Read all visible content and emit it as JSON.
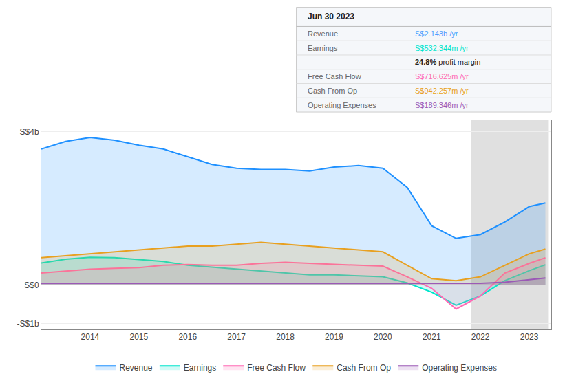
{
  "chart_data": {
    "type": "area",
    "x": [
      2013.0,
      2013.5,
      2014.0,
      2014.5,
      2015.0,
      2015.5,
      2016.0,
      2016.5,
      2017.0,
      2017.5,
      2018.0,
      2018.5,
      2019.0,
      2019.5,
      2020.0,
      2020.5,
      2021.0,
      2021.5,
      2022.0,
      2022.5,
      2023.0,
      2023.33
    ],
    "xlim": [
      2013.0,
      2023.45
    ],
    "xticks": [
      2014,
      2015,
      2016,
      2017,
      2018,
      2019,
      2020,
      2021,
      2022,
      2023
    ],
    "ylim": [
      -1.15,
      4.3
    ],
    "yticks": [
      {
        "value": -1,
        "label": "-S$1b"
      },
      {
        "value": 0,
        "label": "S$0"
      },
      {
        "value": 4,
        "label": "S$4b"
      }
    ],
    "grid": "y",
    "legend": "bottom",
    "series": [
      {
        "name": "Revenue",
        "color": "#1e90ff",
        "values": [
          3.55,
          3.75,
          3.85,
          3.78,
          3.65,
          3.55,
          3.35,
          3.15,
          3.05,
          3.02,
          3.02,
          2.98,
          3.08,
          3.12,
          3.05,
          2.55,
          1.55,
          1.22,
          1.32,
          1.65,
          2.05,
          2.143
        ]
      },
      {
        "name": "Earnings",
        "color": "#00e5cc",
        "values": [
          0.58,
          0.68,
          0.73,
          0.72,
          0.67,
          0.62,
          0.52,
          0.47,
          0.42,
          0.38,
          0.32,
          0.27,
          0.27,
          0.24,
          0.22,
          0.06,
          -0.18,
          -0.52,
          -0.28,
          0.12,
          0.38,
          0.532
        ]
      },
      {
        "name": "Free Cash Flow",
        "color": "#ff69b4",
        "values": [
          0.32,
          0.37,
          0.42,
          0.44,
          0.46,
          0.52,
          0.54,
          0.52,
          0.52,
          0.57,
          0.6,
          0.57,
          0.54,
          0.52,
          0.5,
          0.22,
          -0.08,
          -0.62,
          -0.28,
          0.32,
          0.57,
          0.717
        ]
      },
      {
        "name": "Cash From Op",
        "color": "#e8a020",
        "values": [
          0.72,
          0.77,
          0.82,
          0.87,
          0.92,
          0.97,
          1.02,
          1.02,
          1.07,
          1.12,
          1.07,
          1.02,
          0.97,
          0.92,
          0.87,
          0.52,
          0.17,
          0.12,
          0.22,
          0.52,
          0.82,
          0.942
        ]
      },
      {
        "name": "Operating Expenses",
        "color": "#9b59b6",
        "values": [
          0.05,
          0.05,
          0.05,
          0.05,
          0.05,
          0.05,
          0.05,
          0.05,
          0.05,
          0.05,
          0.05,
          0.05,
          0.05,
          0.05,
          0.05,
          0.05,
          0.05,
          0.05,
          0.05,
          0.08,
          0.14,
          0.189
        ]
      }
    ],
    "shaded_x": [
      2021.8,
      2023.4
    ],
    "info_box": {
      "title": "Jun 30 2023",
      "rows": [
        {
          "label": "Revenue",
          "value": "S$2.143b /yr",
          "color": "#4d9fff"
        },
        {
          "label": "Earnings",
          "value": "S$532.344m /yr",
          "color": "#00e5cc"
        },
        {
          "value_bold": "24.8%",
          "value_rest": "profit margin"
        },
        {
          "label": "Free Cash Flow",
          "value": "S$716.625m /yr",
          "color": "#ff69b4"
        },
        {
          "label": "Cash From Op",
          "value": "S$942.257m /yr",
          "color": "#e8a020"
        },
        {
          "label": "Operating Expenses",
          "value": "S$189.346m /yr",
          "color": "#9b59b6"
        }
      ]
    }
  }
}
